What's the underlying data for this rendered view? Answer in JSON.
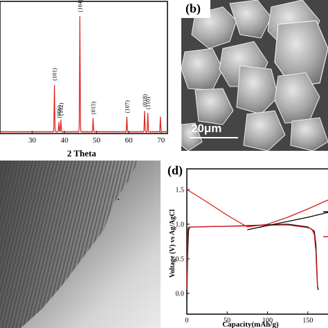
{
  "panel_a": {
    "chart_data": {
      "type": "line",
      "xlabel": "2 Theta",
      "ylabel": "",
      "xlim": [
        20,
        72
      ],
      "x_ticks": [
        "30",
        "40",
        "50",
        "60",
        "70"
      ],
      "series": [
        {
          "peaks": [
            {
              "x": 36.9,
              "height": 0.38,
              "label": "(101)"
            },
            {
              "x": 38.3,
              "height": 0.08,
              "label": "(006)"
            },
            {
              "x": 38.9,
              "height": 0.1,
              "label": "(102)"
            },
            {
              "x": 44.8,
              "height": 0.93,
              "label": "(104)"
            },
            {
              "x": 48.9,
              "height": 0.11,
              "label": "(015)"
            },
            {
              "x": 59.4,
              "height": 0.12,
              "label": "(107)"
            },
            {
              "x": 64.9,
              "height": 0.17,
              "label": "(018)"
            },
            {
              "x": 65.9,
              "height": 0.15,
              "label": "(110)"
            },
            {
              "x": 69.8,
              "height": 0.12,
              "label": ""
            }
          ]
        }
      ],
      "colors": {
        "trace": "#e0201c"
      }
    }
  },
  "panel_b": {
    "letter": "(b)",
    "scale_text": "20μm"
  },
  "panel_c": {},
  "panel_d": {
    "letter": "(d)",
    "chart_data": {
      "type": "line",
      "xlabel": "Capacity(mAh/g)",
      "ylabel": "Voltage (V) vs Ag/AgCl",
      "xlim": [
        0,
        175
      ],
      "ylim": [
        -0.3,
        1.8
      ],
      "x_ticks": [
        0,
        50,
        100,
        150
      ],
      "y_ticks": [
        "0.0",
        "0.5",
        "1.0",
        "1.5"
      ],
      "series": [
        {
          "color": "#000000",
          "x": [
            0,
            1,
            2,
            3,
            5,
            10,
            25,
            50,
            75,
            100,
            125,
            150,
            158,
            160,
            161,
            162,
            163
          ],
          "y": [
            -0.1,
            0.55,
            0.9,
            0.95,
            0.96,
            0.96,
            0.965,
            0.97,
            0.98,
            0.99,
            1.0,
            0.96,
            0.9,
            0.7,
            0.4,
            0.1,
            0.05
          ]
        },
        {
          "color": "#d9191c",
          "x": [
            0,
            1,
            2,
            5,
            10,
            25,
            50,
            75,
            100,
            125,
            150,
            155,
            158,
            160,
            161,
            162
          ],
          "y": [
            0.05,
            0.9,
            0.955,
            0.96,
            0.96,
            0.965,
            0.97,
            0.975,
            0.985,
            0.99,
            0.95,
            0.93,
            0.85,
            0.6,
            0.3,
            0.1
          ]
        },
        {
          "color": "#000000",
          "x": [
            75,
            100,
            125,
            150,
            175
          ],
          "y": [
            0.92,
            0.98,
            1.04,
            1.1,
            1.17
          ]
        },
        {
          "color": "#d9191c",
          "x": [
            0,
            10,
            25,
            50,
            75,
            100,
            125,
            150,
            175
          ],
          "y": [
            1.5,
            1.43,
            1.32,
            1.13,
            0.96,
            1.0,
            1.1,
            1.22,
            1.35
          ]
        }
      ]
    }
  }
}
